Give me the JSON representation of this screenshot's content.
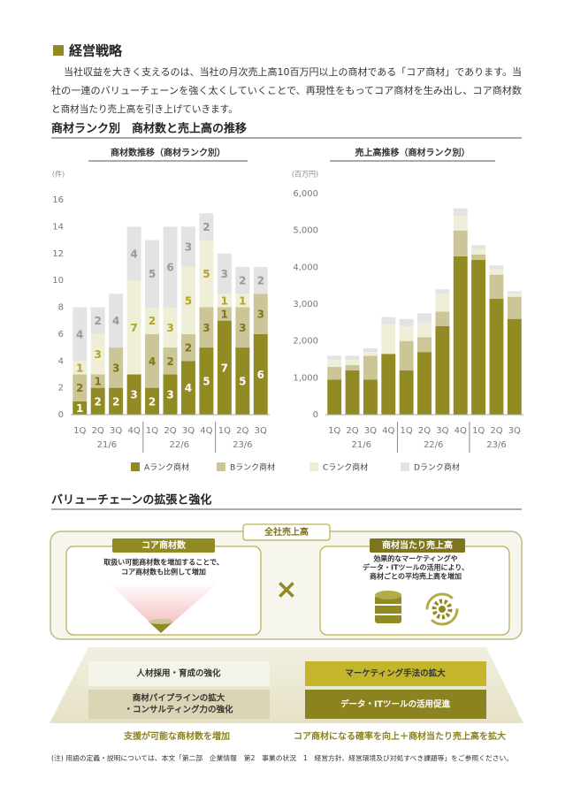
{
  "header": {
    "title": "経営戦略",
    "paragraph": [
      "当社収益を大きく支えるのは、当社の月次売上高10百万円以上の商材である「コア商材」であります。当",
      "社の一連のバリューチェーンを強く太くしていくことで、再現性をもってコア商材を生み出し、コア商材数",
      "と商材当たり売上高を引き上げていきます。"
    ]
  },
  "chart_section_title": "商材ランク別　商材数と売上高の推移",
  "chart_data": [
    {
      "type": "bar",
      "stacked": true,
      "title": "商材数推移（商材ランク別）",
      "unit": "(件)",
      "categories": [
        "1Q",
        "2Q",
        "3Q",
        "4Q",
        "1Q",
        "2Q",
        "3Q",
        "4Q",
        "1Q",
        "2Q",
        "3Q"
      ],
      "category_groups": [
        "21/6",
        "22/6",
        "23/6"
      ],
      "ylim": [
        0,
        16
      ],
      "yticks": [
        0,
        2,
        4,
        6,
        8,
        10,
        12,
        14,
        16
      ],
      "series": [
        {
          "name": "Aランク商材",
          "color": "#928a22",
          "values": [
            1,
            2,
            2,
            3,
            2,
            3,
            4,
            5,
            7,
            5,
            6
          ]
        },
        {
          "name": "Bランク商材",
          "color": "#cbc597",
          "values": [
            2,
            1,
            3,
            null,
            4,
            2,
            2,
            3,
            1,
            3,
            3
          ]
        },
        {
          "name": "Cランク商材",
          "color": "#efeed6",
          "values": [
            1,
            3,
            null,
            7,
            2,
            3,
            5,
            5,
            1,
            1,
            null
          ]
        },
        {
          "name": "Dランク商材",
          "color": "#e3e3e3",
          "values": [
            4,
            2,
            4,
            4,
            5,
            6,
            3,
            2,
            3,
            2,
            2
          ]
        }
      ]
    },
    {
      "type": "bar",
      "stacked": true,
      "title": "売上高推移（商材ランク別）",
      "unit": "(百万円)",
      "categories": [
        "1Q",
        "2Q",
        "3Q",
        "4Q",
        "1Q",
        "2Q",
        "3Q",
        "4Q",
        "1Q",
        "2Q",
        "3Q"
      ],
      "category_groups": [
        "21/6",
        "22/6",
        "23/6"
      ],
      "ylim": [
        0,
        6000
      ],
      "yticks": [
        0,
        {
          "value": 1000,
          "label": "1,000"
        },
        {
          "value": 2000,
          "label": "2,000"
        },
        {
          "value": 3000,
          "label": "3,000"
        },
        {
          "value": 4000,
          "label": "4,000"
        },
        {
          "value": 5000,
          "label": "5,000"
        },
        {
          "value": 6000,
          "label": "6,000"
        }
      ],
      "series": [
        {
          "color": "#928a22",
          "values": [
            950,
            1200,
            950,
            1650,
            1200,
            1700,
            2400,
            4300,
            4200,
            3150,
            2600
          ]
        },
        {
          "color": "#cbc597",
          "values": [
            350,
            150,
            650,
            null,
            800,
            400,
            400,
            700,
            150,
            650,
            600
          ]
        },
        {
          "color": "#efeed6",
          "values": [
            200,
            150,
            100,
            800,
            400,
            400,
            500,
            400,
            150,
            150,
            100
          ]
        },
        {
          "color": "#e3e3e3",
          "values": [
            100,
            100,
            100,
            200,
            200,
            250,
            100,
            200,
            100,
            100,
            50
          ]
        }
      ]
    }
  ],
  "value_chain": {
    "title": "バリューチェーンの拡張と強化",
    "total": "全社売上高",
    "left": {
      "label": "コア商材数",
      "text": [
        "取扱い可能商材数を増加することで、",
        "コア商材数も比例して増加"
      ]
    },
    "operator": "×",
    "right": {
      "label": "商材当たり売上高",
      "text": [
        "効果的なマーケティングや",
        "データ・ITツールの活用により、",
        "商材ごとの平均売上高を増加"
      ]
    },
    "actions_left": [
      "人材採用・育成の強化",
      [
        "商材パイプラインの拡大",
        "・コンサルティング力の強化"
      ]
    ],
    "actions_right": [
      "マーケティング手法の拡大",
      "データ・ITツールの活用促進"
    ],
    "result_left": "支援が可能な商材数を増加",
    "result_right": "コア商材になる確率を向上＋商材当たり売上高を拡大"
  },
  "footnote": "(注) 用語の定義・説明については、本文「第二部　企業情報　第2　事業の状況　1　経営方針、経営環境及び対処すべき課題等」をご参照ください。"
}
